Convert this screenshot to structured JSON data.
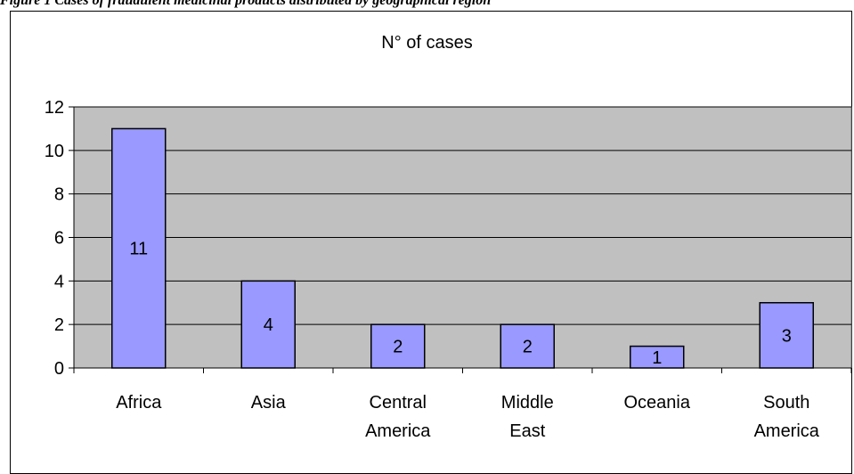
{
  "caption": "Figure 1 Cases of fraudulent medicinal products distributed by geographical region",
  "chart_data": {
    "type": "bar",
    "title": "N° of cases",
    "categories": [
      [
        "Africa"
      ],
      [
        "Asia"
      ],
      [
        "Central",
        "America"
      ],
      [
        "Middle",
        "East"
      ],
      [
        "Oceania"
      ],
      [
        "South",
        "America"
      ]
    ],
    "values": [
      11,
      4,
      2,
      2,
      1,
      3
    ],
    "data_labels": [
      "11",
      "4",
      "2",
      "2",
      "1",
      "3"
    ],
    "ylim": [
      0,
      12
    ],
    "yticks": [
      0,
      2,
      4,
      6,
      8,
      10,
      12
    ],
    "grid": true,
    "legend": "none",
    "colors": {
      "bar_fill": "#9999ff",
      "plot_background": "#c0c0c0",
      "gridline": "#000000"
    }
  }
}
